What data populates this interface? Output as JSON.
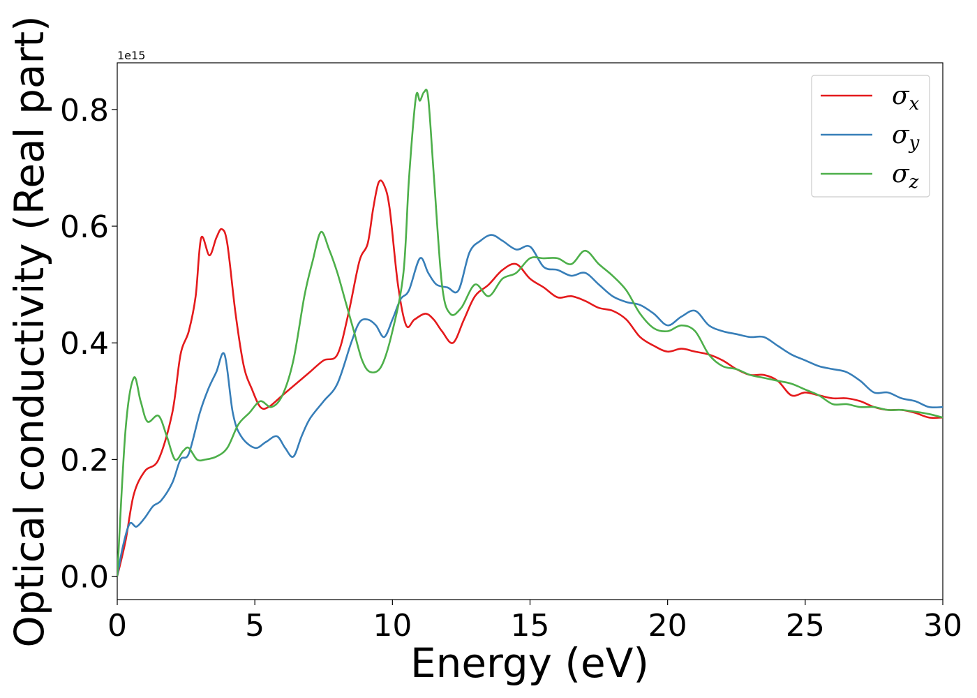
{
  "chart_data": {
    "type": "line",
    "title": "",
    "xlabel": "Energy (eV)",
    "ylabel": "Optical conductivity (Real part)",
    "y_offset_label": "1e15",
    "xlim": [
      0,
      30
    ],
    "ylim": [
      -0.04,
      0.88
    ],
    "x_ticks": [
      0,
      5,
      10,
      15,
      20,
      25,
      30
    ],
    "x_tick_labels": [
      "0",
      "5",
      "10",
      "15",
      "20",
      "25",
      "30"
    ],
    "y_ticks": [
      0.0,
      0.2,
      0.4,
      0.6,
      0.8
    ],
    "y_tick_labels": [
      "0.0",
      "0.2",
      "0.4",
      "0.6",
      "0.8"
    ],
    "grid": false,
    "legend_position": "top-right",
    "series": [
      {
        "name": "σ",
        "subscript": "x",
        "color": "#e41a1c",
        "x": [
          0,
          0.3,
          0.6,
          1.0,
          1.5,
          2.0,
          2.3,
          2.6,
          2.85,
          3.05,
          3.35,
          3.6,
          3.8,
          4.0,
          4.3,
          4.6,
          4.9,
          5.2,
          5.5,
          6.0,
          6.5,
          7.0,
          7.5,
          8.0,
          8.4,
          8.8,
          9.1,
          9.3,
          9.5,
          9.7,
          9.9,
          10.2,
          10.5,
          10.8,
          11.2,
          11.5,
          11.8,
          12.2,
          12.6,
          13.0,
          13.5,
          14.0,
          14.5,
          15.0,
          15.5,
          16.0,
          16.5,
          17.0,
          17.5,
          18.0,
          18.5,
          19.0,
          19.5,
          20.0,
          20.5,
          21.0,
          21.5,
          22.0,
          22.5,
          23.0,
          23.5,
          24.0,
          24.5,
          25.0,
          25.5,
          26.0,
          26.5,
          27.0,
          27.5,
          28.0,
          28.5,
          29.0,
          29.5,
          30.0
        ],
        "values": [
          0.0,
          0.06,
          0.14,
          0.18,
          0.2,
          0.28,
          0.38,
          0.42,
          0.48,
          0.58,
          0.55,
          0.58,
          0.595,
          0.57,
          0.45,
          0.36,
          0.32,
          0.29,
          0.29,
          0.31,
          0.33,
          0.35,
          0.37,
          0.38,
          0.45,
          0.54,
          0.57,
          0.63,
          0.675,
          0.67,
          0.63,
          0.5,
          0.43,
          0.44,
          0.45,
          0.44,
          0.42,
          0.4,
          0.44,
          0.48,
          0.5,
          0.525,
          0.535,
          0.51,
          0.495,
          0.478,
          0.48,
          0.472,
          0.46,
          0.455,
          0.44,
          0.41,
          0.395,
          0.385,
          0.39,
          0.385,
          0.38,
          0.37,
          0.355,
          0.345,
          0.345,
          0.335,
          0.31,
          0.315,
          0.31,
          0.305,
          0.305,
          0.3,
          0.29,
          0.285,
          0.285,
          0.28,
          0.272,
          0.272
        ]
      },
      {
        "name": "σ",
        "subscript": "y",
        "color": "#377eb8",
        "x": [
          0,
          0.2,
          0.45,
          0.7,
          1.0,
          1.3,
          1.6,
          2.0,
          2.3,
          2.6,
          3.0,
          3.3,
          3.6,
          3.9,
          4.2,
          4.5,
          5.0,
          5.4,
          5.8,
          6.1,
          6.4,
          6.7,
          7.0,
          7.5,
          8.0,
          8.5,
          8.8,
          9.1,
          9.4,
          9.7,
          10.0,
          10.3,
          10.6,
          11.0,
          11.3,
          11.6,
          12.0,
          12.4,
          12.8,
          13.2,
          13.6,
          14.0,
          14.5,
          15.0,
          15.5,
          16.0,
          16.5,
          17.0,
          17.5,
          18.0,
          18.5,
          19.0,
          19.5,
          20.0,
          20.5,
          21.0,
          21.5,
          22.0,
          22.5,
          23.0,
          23.5,
          24.0,
          24.5,
          25.0,
          25.5,
          26.0,
          26.5,
          27.0,
          27.5,
          28.0,
          28.5,
          29.0,
          29.5,
          30.0
        ],
        "values": [
          0.0,
          0.05,
          0.09,
          0.085,
          0.1,
          0.12,
          0.13,
          0.16,
          0.2,
          0.21,
          0.28,
          0.32,
          0.35,
          0.38,
          0.28,
          0.24,
          0.22,
          0.23,
          0.24,
          0.22,
          0.205,
          0.24,
          0.27,
          0.3,
          0.33,
          0.4,
          0.435,
          0.44,
          0.43,
          0.41,
          0.44,
          0.475,
          0.49,
          0.545,
          0.52,
          0.5,
          0.495,
          0.49,
          0.555,
          0.575,
          0.585,
          0.575,
          0.56,
          0.565,
          0.53,
          0.525,
          0.515,
          0.52,
          0.5,
          0.48,
          0.47,
          0.465,
          0.45,
          0.43,
          0.445,
          0.455,
          0.43,
          0.42,
          0.415,
          0.41,
          0.41,
          0.395,
          0.38,
          0.37,
          0.36,
          0.355,
          0.35,
          0.335,
          0.315,
          0.315,
          0.305,
          0.3,
          0.29,
          0.29
        ]
      },
      {
        "name": "σ",
        "subscript": "z",
        "color": "#4daf4a",
        "x": [
          0,
          0.3,
          0.6,
          0.85,
          1.1,
          1.5,
          1.8,
          2.1,
          2.4,
          2.6,
          2.9,
          3.2,
          3.6,
          4.0,
          4.4,
          4.8,
          5.2,
          5.6,
          6.0,
          6.4,
          6.8,
          7.1,
          7.4,
          7.7,
          8.0,
          8.3,
          8.6,
          8.9,
          9.2,
          9.6,
          10.0,
          10.4,
          10.6,
          10.85,
          11.0,
          11.15,
          11.3,
          11.5,
          11.8,
          12.1,
          12.5,
          13.0,
          13.5,
          14.0,
          14.5,
          15.0,
          15.5,
          16.0,
          16.5,
          17.0,
          17.5,
          18.0,
          18.5,
          19.0,
          19.5,
          20.0,
          20.5,
          21.0,
          21.5,
          22.0,
          22.5,
          23.0,
          23.5,
          24.0,
          24.5,
          25.0,
          25.5,
          26.0,
          26.5,
          27.0,
          27.5,
          28.0,
          28.5,
          29.0,
          29.5,
          30.0
        ],
        "values": [
          0.0,
          0.25,
          0.34,
          0.3,
          0.265,
          0.275,
          0.24,
          0.2,
          0.215,
          0.22,
          0.2,
          0.2,
          0.205,
          0.22,
          0.26,
          0.28,
          0.3,
          0.29,
          0.31,
          0.37,
          0.48,
          0.54,
          0.59,
          0.56,
          0.52,
          0.47,
          0.42,
          0.37,
          0.35,
          0.36,
          0.42,
          0.52,
          0.68,
          0.82,
          0.815,
          0.83,
          0.82,
          0.69,
          0.5,
          0.45,
          0.46,
          0.5,
          0.48,
          0.51,
          0.52,
          0.545,
          0.545,
          0.545,
          0.535,
          0.558,
          0.535,
          0.515,
          0.49,
          0.45,
          0.425,
          0.42,
          0.43,
          0.42,
          0.38,
          0.36,
          0.355,
          0.345,
          0.34,
          0.335,
          0.33,
          0.32,
          0.31,
          0.295,
          0.295,
          0.29,
          0.29,
          0.285,
          0.285,
          0.282,
          0.278,
          0.272
        ]
      }
    ]
  }
}
